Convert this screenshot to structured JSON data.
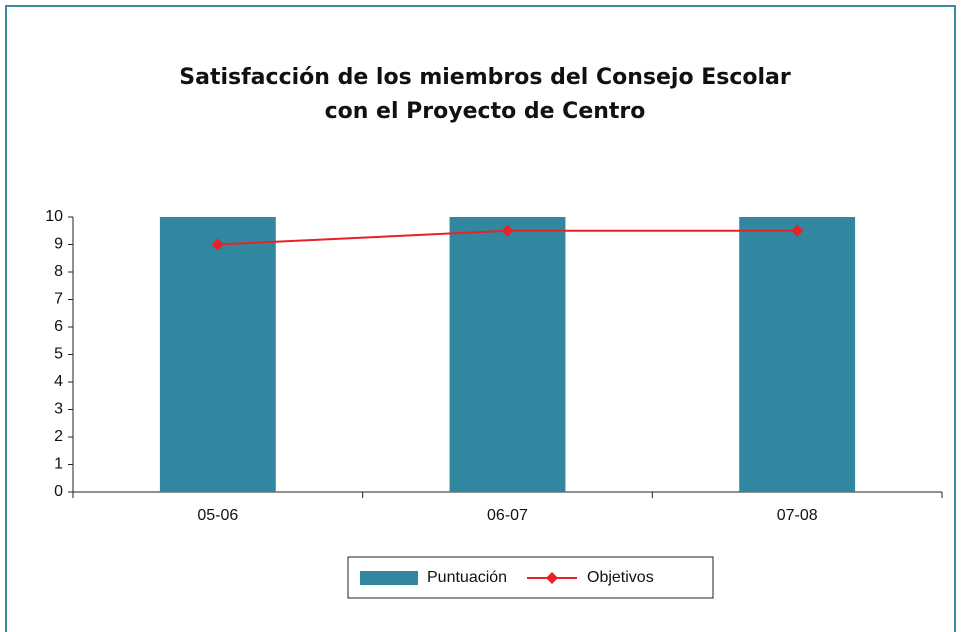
{
  "chart_data": {
    "type": "bar",
    "title": [
      "Satisfacción de los miembros del Consejo Escolar",
      "con el Proyecto de Centro"
    ],
    "categories": [
      "05-06",
      "06-07",
      "07-08"
    ],
    "series": [
      {
        "name": "Puntuación",
        "type": "bar",
        "color": "#31879f",
        "values": [
          10,
          10,
          10
        ]
      },
      {
        "name": "Objetivos",
        "type": "line",
        "color": "#e8202a",
        "values": [
          9,
          9.5,
          9.5
        ]
      }
    ],
    "ylim": [
      0,
      10
    ],
    "yticks": [
      0,
      1,
      2,
      3,
      4,
      5,
      6,
      7,
      8,
      9,
      10
    ],
    "grid": false,
    "legend": "bottom"
  }
}
